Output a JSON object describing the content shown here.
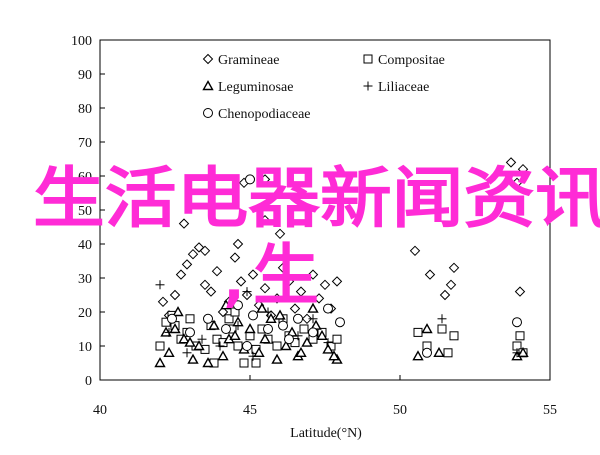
{
  "overlay": {
    "headline": "生活电器新闻资讯",
    "sub": "生",
    "comma": ","
  },
  "chart_data": {
    "type": "scatter",
    "xlabel": "Latitude(°N)",
    "ylabel": "",
    "xlim": [
      40,
      55
    ],
    "ylim": [
      0,
      100
    ],
    "x_ticks": [
      "40",
      "45",
      "50",
      "55"
    ],
    "y_ticks": [
      "0",
      "10",
      "20",
      "30",
      "40",
      "50",
      "60",
      "70",
      "80",
      "90",
      "100"
    ],
    "legend_placement": "top-left",
    "grid": false,
    "series": [
      {
        "name": "Gramineae",
        "marker": "diamond",
        "points": [
          [
            42.1,
            23
          ],
          [
            42.3,
            19
          ],
          [
            42.5,
            25
          ],
          [
            42.7,
            31
          ],
          [
            42.9,
            34
          ],
          [
            43.1,
            37
          ],
          [
            43.3,
            39
          ],
          [
            43.5,
            28
          ],
          [
            43.7,
            26
          ],
          [
            43.9,
            32
          ],
          [
            44.1,
            20
          ],
          [
            44.3,
            23
          ],
          [
            44.5,
            36
          ],
          [
            44.7,
            29
          ],
          [
            44.9,
            25
          ],
          [
            45.1,
            31
          ],
          [
            45.3,
            22
          ],
          [
            45.5,
            27
          ],
          [
            45.7,
            19
          ],
          [
            45.9,
            24
          ],
          [
            46.1,
            33
          ],
          [
            46.3,
            29
          ],
          [
            46.5,
            21
          ],
          [
            46.7,
            26
          ],
          [
            46.9,
            18
          ],
          [
            47.1,
            31
          ],
          [
            47.3,
            24
          ],
          [
            47.5,
            28
          ],
          [
            47.7,
            21
          ],
          [
            47.9,
            29
          ],
          [
            42.8,
            46
          ],
          [
            43.5,
            38
          ],
          [
            44.6,
            40
          ],
          [
            45.5,
            47
          ],
          [
            46.0,
            43
          ],
          [
            50.5,
            38
          ],
          [
            51.0,
            31
          ],
          [
            51.5,
            25
          ],
          [
            51.7,
            28
          ],
          [
            51.8,
            33
          ],
          [
            54.0,
            26
          ],
          [
            53.9,
            58
          ],
          [
            54.1,
            62
          ],
          [
            53.7,
            64
          ],
          [
            44.8,
            58
          ],
          [
            45.5,
            59
          ]
        ]
      },
      {
        "name": "Compositae",
        "marker": "square",
        "points": [
          [
            42.0,
            10
          ],
          [
            42.2,
            17
          ],
          [
            42.4,
            19
          ],
          [
            42.7,
            12
          ],
          [
            42.9,
            14
          ],
          [
            43.2,
            10
          ],
          [
            43.5,
            9
          ],
          [
            43.7,
            16
          ],
          [
            43.9,
            12
          ],
          [
            44.1,
            11
          ],
          [
            44.4,
            15
          ],
          [
            44.6,
            10
          ],
          [
            44.8,
            5
          ],
          [
            45.0,
            13
          ],
          [
            45.2,
            9
          ],
          [
            45.4,
            15
          ],
          [
            45.6,
            12
          ],
          [
            45.9,
            10
          ],
          [
            46.1,
            18
          ],
          [
            46.3,
            13
          ],
          [
            46.5,
            11
          ],
          [
            46.8,
            15
          ],
          [
            47.1,
            12
          ],
          [
            47.4,
            14
          ],
          [
            47.7,
            10
          ],
          [
            47.9,
            12
          ],
          [
            44.3,
            18
          ],
          [
            44.5,
            20
          ],
          [
            42.5,
            16
          ],
          [
            43.0,
            18
          ],
          [
            50.6,
            14
          ],
          [
            50.9,
            10
          ],
          [
            51.4,
            15
          ],
          [
            51.6,
            8
          ],
          [
            51.8,
            13
          ],
          [
            53.9,
            10
          ],
          [
            54.0,
            13
          ],
          [
            54.1,
            8
          ],
          [
            43.8,
            5
          ],
          [
            45.2,
            5
          ]
        ]
      },
      {
        "name": "Leguminosae",
        "marker": "triangle",
        "points": [
          [
            42.0,
            5
          ],
          [
            42.3,
            8
          ],
          [
            42.5,
            15
          ],
          [
            42.6,
            20
          ],
          [
            42.8,
            12
          ],
          [
            43.1,
            6
          ],
          [
            43.3,
            10
          ],
          [
            43.6,
            5
          ],
          [
            43.8,
            16
          ],
          [
            44.1,
            7
          ],
          [
            44.3,
            12
          ],
          [
            44.6,
            17
          ],
          [
            44.8,
            9
          ],
          [
            45.0,
            15
          ],
          [
            45.3,
            8
          ],
          [
            45.5,
            12
          ],
          [
            45.7,
            18
          ],
          [
            45.9,
            6
          ],
          [
            46.2,
            10
          ],
          [
            46.4,
            14
          ],
          [
            46.6,
            7
          ],
          [
            46.9,
            11
          ],
          [
            47.1,
            21
          ],
          [
            47.4,
            13
          ],
          [
            47.6,
            9
          ],
          [
            47.9,
            6
          ],
          [
            44.2,
            22
          ],
          [
            45.4,
            21
          ],
          [
            46.7,
            8
          ],
          [
            47.2,
            16
          ],
          [
            50.6,
            7
          ],
          [
            50.9,
            15
          ],
          [
            51.3,
            8
          ],
          [
            53.9,
            7
          ],
          [
            54.1,
            8
          ],
          [
            43.0,
            11
          ],
          [
            44.5,
            13
          ],
          [
            46.0,
            19
          ],
          [
            47.8,
            7
          ],
          [
            42.2,
            14
          ]
        ]
      },
      {
        "name": "Liliaceae",
        "marker": "plus",
        "points": [
          [
            42.0,
            28
          ],
          [
            42.3,
            14
          ],
          [
            42.9,
            8
          ],
          [
            43.4,
            12
          ],
          [
            44.0,
            10
          ],
          [
            44.6,
            16
          ],
          [
            45.1,
            7
          ],
          [
            45.6,
            20
          ],
          [
            46.1,
            17
          ],
          [
            46.6,
            13
          ],
          [
            47.1,
            18
          ],
          [
            47.6,
            11
          ],
          [
            51.4,
            18
          ],
          [
            53.9,
            8
          ],
          [
            44.9,
            26
          ]
        ]
      },
      {
        "name": "Chenopodiaceae",
        "marker": "circle",
        "points": [
          [
            42.4,
            18
          ],
          [
            43.0,
            14
          ],
          [
            43.6,
            18
          ],
          [
            44.2,
            15
          ],
          [
            44.6,
            22
          ],
          [
            45.1,
            19
          ],
          [
            45.6,
            15
          ],
          [
            46.1,
            16
          ],
          [
            46.6,
            18
          ],
          [
            47.1,
            14
          ],
          [
            47.6,
            21
          ],
          [
            48.0,
            17
          ],
          [
            44.9,
            10
          ],
          [
            46.3,
            12
          ],
          [
            53.9,
            17
          ],
          [
            50.9,
            8
          ],
          [
            45.0,
            59
          ]
        ]
      }
    ]
  }
}
